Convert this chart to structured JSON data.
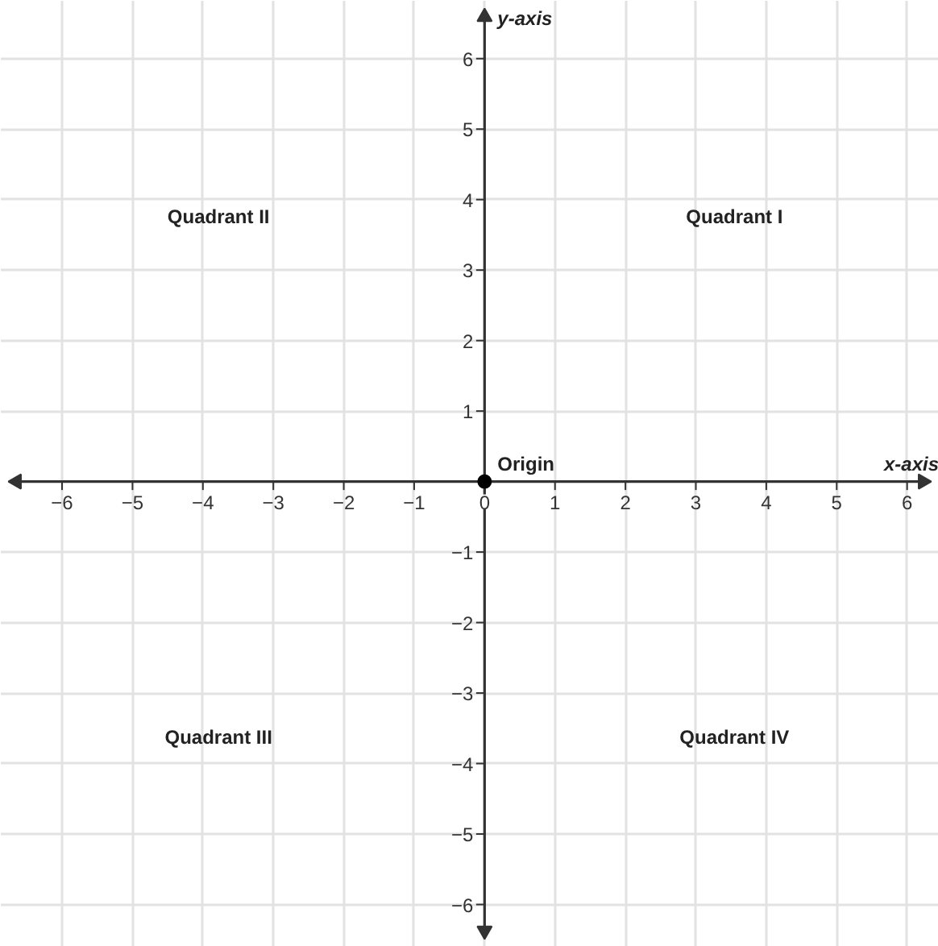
{
  "chart_data": {
    "type": "scatter",
    "x": [
      0
    ],
    "values": [
      0
    ],
    "color": "#000000",
    "marker": "circle",
    "xlabel": "x-axis",
    "ylabel": "y-axis",
    "xlim": [
      -6.87,
      6.45
    ],
    "ylim": [
      -6.6,
      6.82
    ],
    "xticks": [
      -6,
      -5,
      -4,
      -3,
      -2,
      -1,
      0,
      1,
      2,
      3,
      4,
      5,
      6
    ],
    "yticks": [
      -6,
      -5,
      -4,
      -3,
      -2,
      -1,
      1,
      2,
      3,
      4,
      5,
      6
    ],
    "grid": true,
    "annotations": [
      {
        "text": "Origin",
        "x": 0,
        "y": 0
      },
      "Quadrant I",
      "Quadrant II",
      "Quadrant III",
      "Quadrant IV"
    ]
  }
}
